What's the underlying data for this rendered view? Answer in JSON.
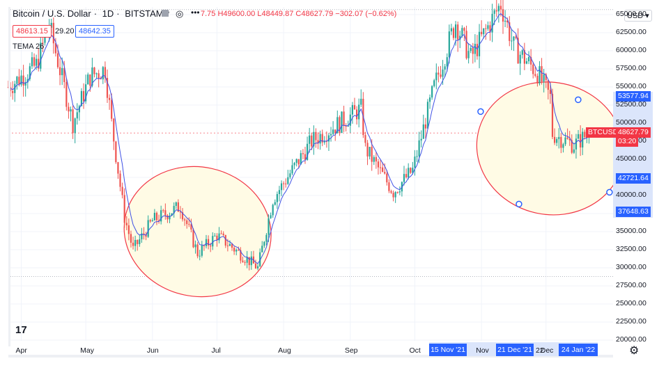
{
  "header": {
    "symbol": "Bitcoin / U.S. Dollar",
    "interval": "1D",
    "exchange": "BITSTAMP",
    "ohlc": "7.75 H49600.00 L48449.87 C48627.79 −302.07 (−0.62%)",
    "bid": "48613.15",
    "spread": "29.20",
    "ask": "48642.35",
    "indicator": "TEMA 26",
    "currency": "USD"
  },
  "badges": {
    "upper_level": "53577.94",
    "symbol_tag": "BTCUSD",
    "last_price": "48627.79",
    "countdown": "03:20",
    "mid_level": "42721.64",
    "lower_level": "37648.63"
  },
  "x_badges": {
    "start": "15 Nov '21",
    "end": "21 Dec '21",
    "fragment": "22",
    "future": "24 Jan '22"
  },
  "colors": {
    "up": "#26a69a",
    "down": "#ef5350",
    "tema": "#3f51e5",
    "ellipse_fill": "#fffbe5",
    "ellipse_stroke": "#f23645",
    "accent": "#2962ff"
  },
  "chart_data": {
    "type": "candlestick",
    "title": "Bitcoin / U.S. Dollar · 1D · BITSTAMP",
    "x_tick_labels": [
      "Apr",
      "May",
      "Jun",
      "Jul",
      "Aug",
      "Sep",
      "Oct",
      "Nov",
      "Dec"
    ],
    "y_tick_labels": [
      "65000.00",
      "62500.00",
      "60000.00",
      "57500.00",
      "55000.00",
      "52500.00",
      "50000.00",
      "47500.00",
      "45000.00",
      "42500.00",
      "40000.00",
      "37500.00",
      "35000.00",
      "32500.00",
      "30000.00",
      "27500.00",
      "25000.00",
      "22500.00",
      "20000.00"
    ],
    "ylim": [
      20000,
      65000
    ],
    "price_path": [
      {
        "x": "2021-03-26",
        "y": 55000
      },
      {
        "x": "2021-04-08",
        "y": 58000
      },
      {
        "x": "2021-04-14",
        "y": 63500
      },
      {
        "x": "2021-04-25",
        "y": 50000
      },
      {
        "x": "2021-05-03",
        "y": 56500
      },
      {
        "x": "2021-05-10",
        "y": 57500
      },
      {
        "x": "2021-05-13",
        "y": 50000
      },
      {
        "x": "2021-05-19",
        "y": 37000
      },
      {
        "x": "2021-05-23",
        "y": 32500
      },
      {
        "x": "2021-06-01",
        "y": 36500
      },
      {
        "x": "2021-06-14",
        "y": 38500
      },
      {
        "x": "2021-06-22",
        "y": 32000
      },
      {
        "x": "2021-07-01",
        "y": 34500
      },
      {
        "x": "2021-07-20",
        "y": 30000
      },
      {
        "x": "2021-07-27",
        "y": 39500
      },
      {
        "x": "2021-08-14",
        "y": 47500
      },
      {
        "x": "2021-08-22",
        "y": 49000
      },
      {
        "x": "2021-09-06",
        "y": 52000
      },
      {
        "x": "2021-09-08",
        "y": 46500
      },
      {
        "x": "2021-09-21",
        "y": 40500
      },
      {
        "x": "2021-09-30",
        "y": 43500
      },
      {
        "x": "2021-10-10",
        "y": 55000
      },
      {
        "x": "2021-10-20",
        "y": 64000
      },
      {
        "x": "2021-10-27",
        "y": 59000
      },
      {
        "x": "2021-11-10",
        "y": 66500
      },
      {
        "x": "2021-11-16",
        "y": 60500
      },
      {
        "x": "2021-11-27",
        "y": 57000
      },
      {
        "x": "2021-12-03",
        "y": 53500
      },
      {
        "x": "2021-12-04",
        "y": 48500
      },
      {
        "x": "2021-12-14",
        "y": 47000
      },
      {
        "x": "2021-12-21",
        "y": 48627.79
      }
    ],
    "price_lines": [
      53577.94,
      48627.79,
      42721.64,
      37648.63
    ],
    "lines": {
      "low": 28800,
      "high": 65700
    },
    "indicator_series": [
      {
        "name": "TEMA 26"
      }
    ],
    "annotations": [
      {
        "type": "ellipse",
        "start": "2021-05-18",
        "end": "2021-07-27",
        "y_center": 35000
      },
      {
        "type": "ellipse",
        "start": "2021-11-15",
        "end": "2021-12-21",
        "y_center": 46500
      }
    ]
  }
}
